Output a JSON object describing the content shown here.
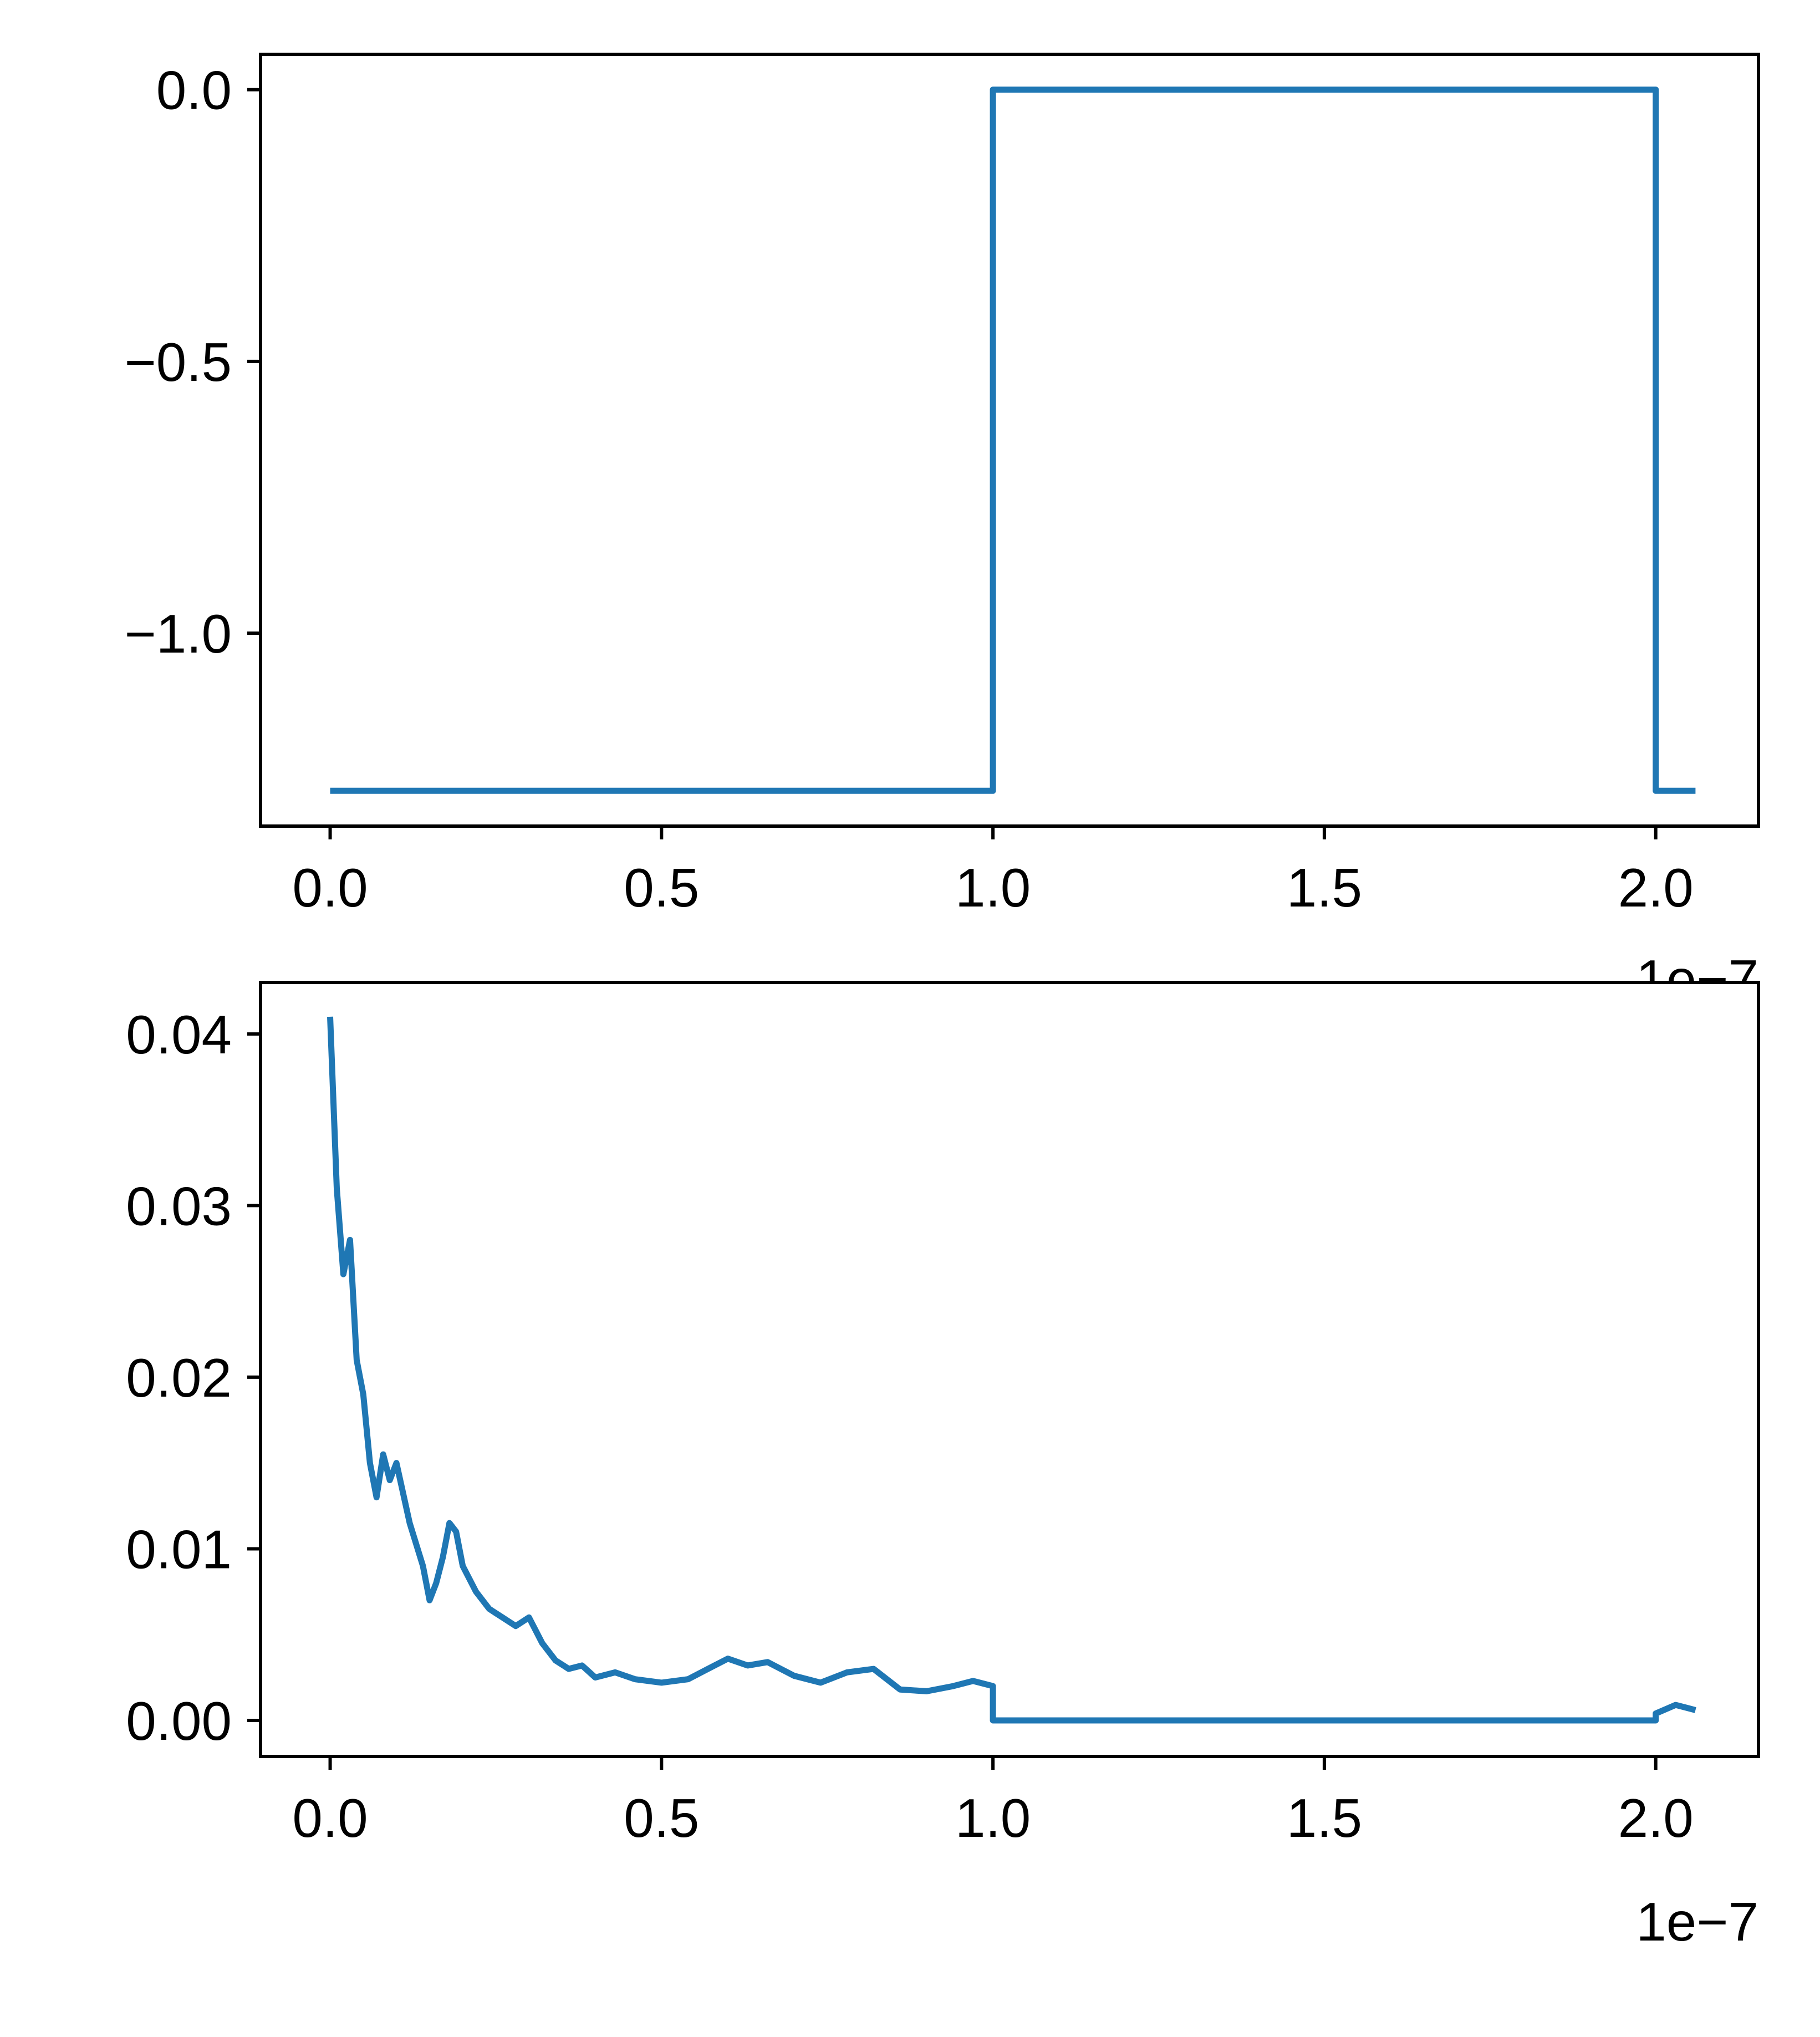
{
  "chart_data": [
    {
      "type": "line",
      "title": "",
      "xlabel": "",
      "ylabel": "",
      "xlim": [
        -1.05e-08,
        2.155e-07
      ],
      "ylim": [
        -1.355,
        0.065
      ],
      "grid": false,
      "color": "#1f77b4",
      "x_ticks": [
        0.0,
        5e-08,
        1e-07,
        1.5e-07,
        2e-07
      ],
      "x_tick_labels": [
        "0.0",
        "0.5",
        "1.0",
        "1.5",
        "2.0"
      ],
      "y_ticks": [
        0.0,
        -0.5,
        -1.0
      ],
      "y_tick_labels": [
        "0.0",
        "−0.5",
        "−1.0"
      ],
      "x_offset_label": "1e−7",
      "series": [
        {
          "x": [
            0.0,
            1e-07,
            1e-07,
            2e-07,
            2e-07,
            2.06e-07
          ],
          "y": [
            -1.29,
            -1.29,
            0.0,
            0.0,
            -1.29,
            -1.29
          ]
        }
      ]
    },
    {
      "type": "line",
      "title": "",
      "xlabel": "",
      "ylabel": "",
      "xlim": [
        -1.05e-08,
        2.155e-07
      ],
      "ylim": [
        -0.0021,
        0.043
      ],
      "grid": false,
      "color": "#1f77b4",
      "x_ticks": [
        0.0,
        5e-08,
        1e-07,
        1.5e-07,
        2e-07
      ],
      "x_tick_labels": [
        "0.0",
        "0.5",
        "1.0",
        "1.5",
        "2.0"
      ],
      "y_ticks": [
        0.0,
        0.01,
        0.02,
        0.03,
        0.04
      ],
      "y_tick_labels": [
        "0.00",
        "0.01",
        "0.02",
        "0.03",
        "0.04"
      ],
      "x_offset_label": "1e−7",
      "series": [
        {
          "x": [
            0.0,
            1e-09,
            2e-09,
            3e-09,
            4e-09,
            5e-09,
            6e-09,
            7e-09,
            8e-09,
            9e-09,
            1e-08,
            1.2e-08,
            1.4e-08,
            1.5e-08,
            1.6e-08,
            1.7e-08,
            1.8e-08,
            1.9e-08,
            2e-08,
            2.2e-08,
            2.4e-08,
            2.6e-08,
            2.8e-08,
            3e-08,
            3.2e-08,
            3.4e-08,
            3.6e-08,
            3.8e-08,
            4e-08,
            4.3e-08,
            4.6e-08,
            5e-08,
            5.4e-08,
            5.8e-08,
            6e-08,
            6.3e-08,
            6.6e-08,
            7e-08,
            7.4e-08,
            7.8e-08,
            8.2e-08,
            8.6e-08,
            9e-08,
            9.4e-08,
            9.7e-08,
            1e-07,
            1e-07,
            2e-07,
            2e-07,
            2.03e-07,
            2.06e-07
          ],
          "y": [
            0.041,
            0.031,
            0.026,
            0.028,
            0.021,
            0.019,
            0.015,
            0.013,
            0.0155,
            0.014,
            0.015,
            0.0115,
            0.009,
            0.007,
            0.008,
            0.0095,
            0.0115,
            0.011,
            0.009,
            0.0075,
            0.0065,
            0.006,
            0.0055,
            0.006,
            0.0045,
            0.0035,
            0.003,
            0.0032,
            0.0025,
            0.0028,
            0.0024,
            0.0022,
            0.0024,
            0.0032,
            0.0036,
            0.0032,
            0.0034,
            0.0026,
            0.0022,
            0.0028,
            0.003,
            0.0018,
            0.0017,
            0.002,
            0.0023,
            0.002,
            0.0,
            0.0,
            0.0004,
            0.0009,
            0.0006
          ]
        }
      ]
    }
  ]
}
